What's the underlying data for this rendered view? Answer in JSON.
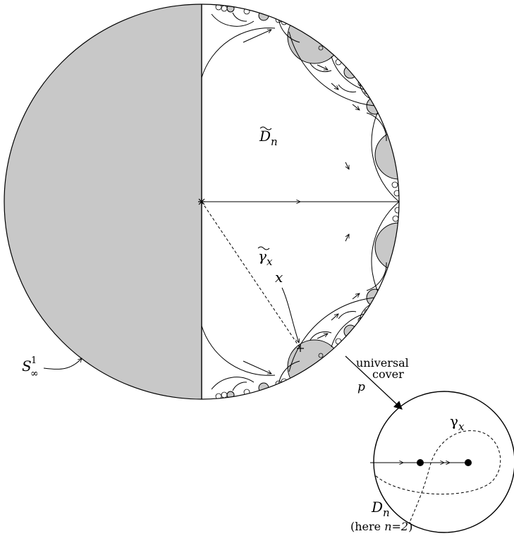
{
  "labels": {
    "d_tilde_main": "D",
    "d_tilde_sub": "n",
    "gamma_tilde_main": "γ",
    "gamma_tilde_sub": "x",
    "x_point": "x",
    "s_inf_main": "S",
    "s_inf_sub": "∞",
    "s_inf_sup": "1",
    "universal": "universal",
    "cover": "cover",
    "p": "p",
    "gamma_main": "γ",
    "gamma_sub": "x",
    "dn_main": "D",
    "dn_sub": "n",
    "here_prefix": "(here ",
    "here_formula": "n=2",
    "here_suffix": ")"
  },
  "colors": {
    "region_fill": "#c8c8c8",
    "stroke": "#000000",
    "background": "#ffffff"
  },
  "icons": {
    "center": "star-marker",
    "orbit_point": "plus-marker",
    "arrowheads": "chevron-arrow"
  }
}
